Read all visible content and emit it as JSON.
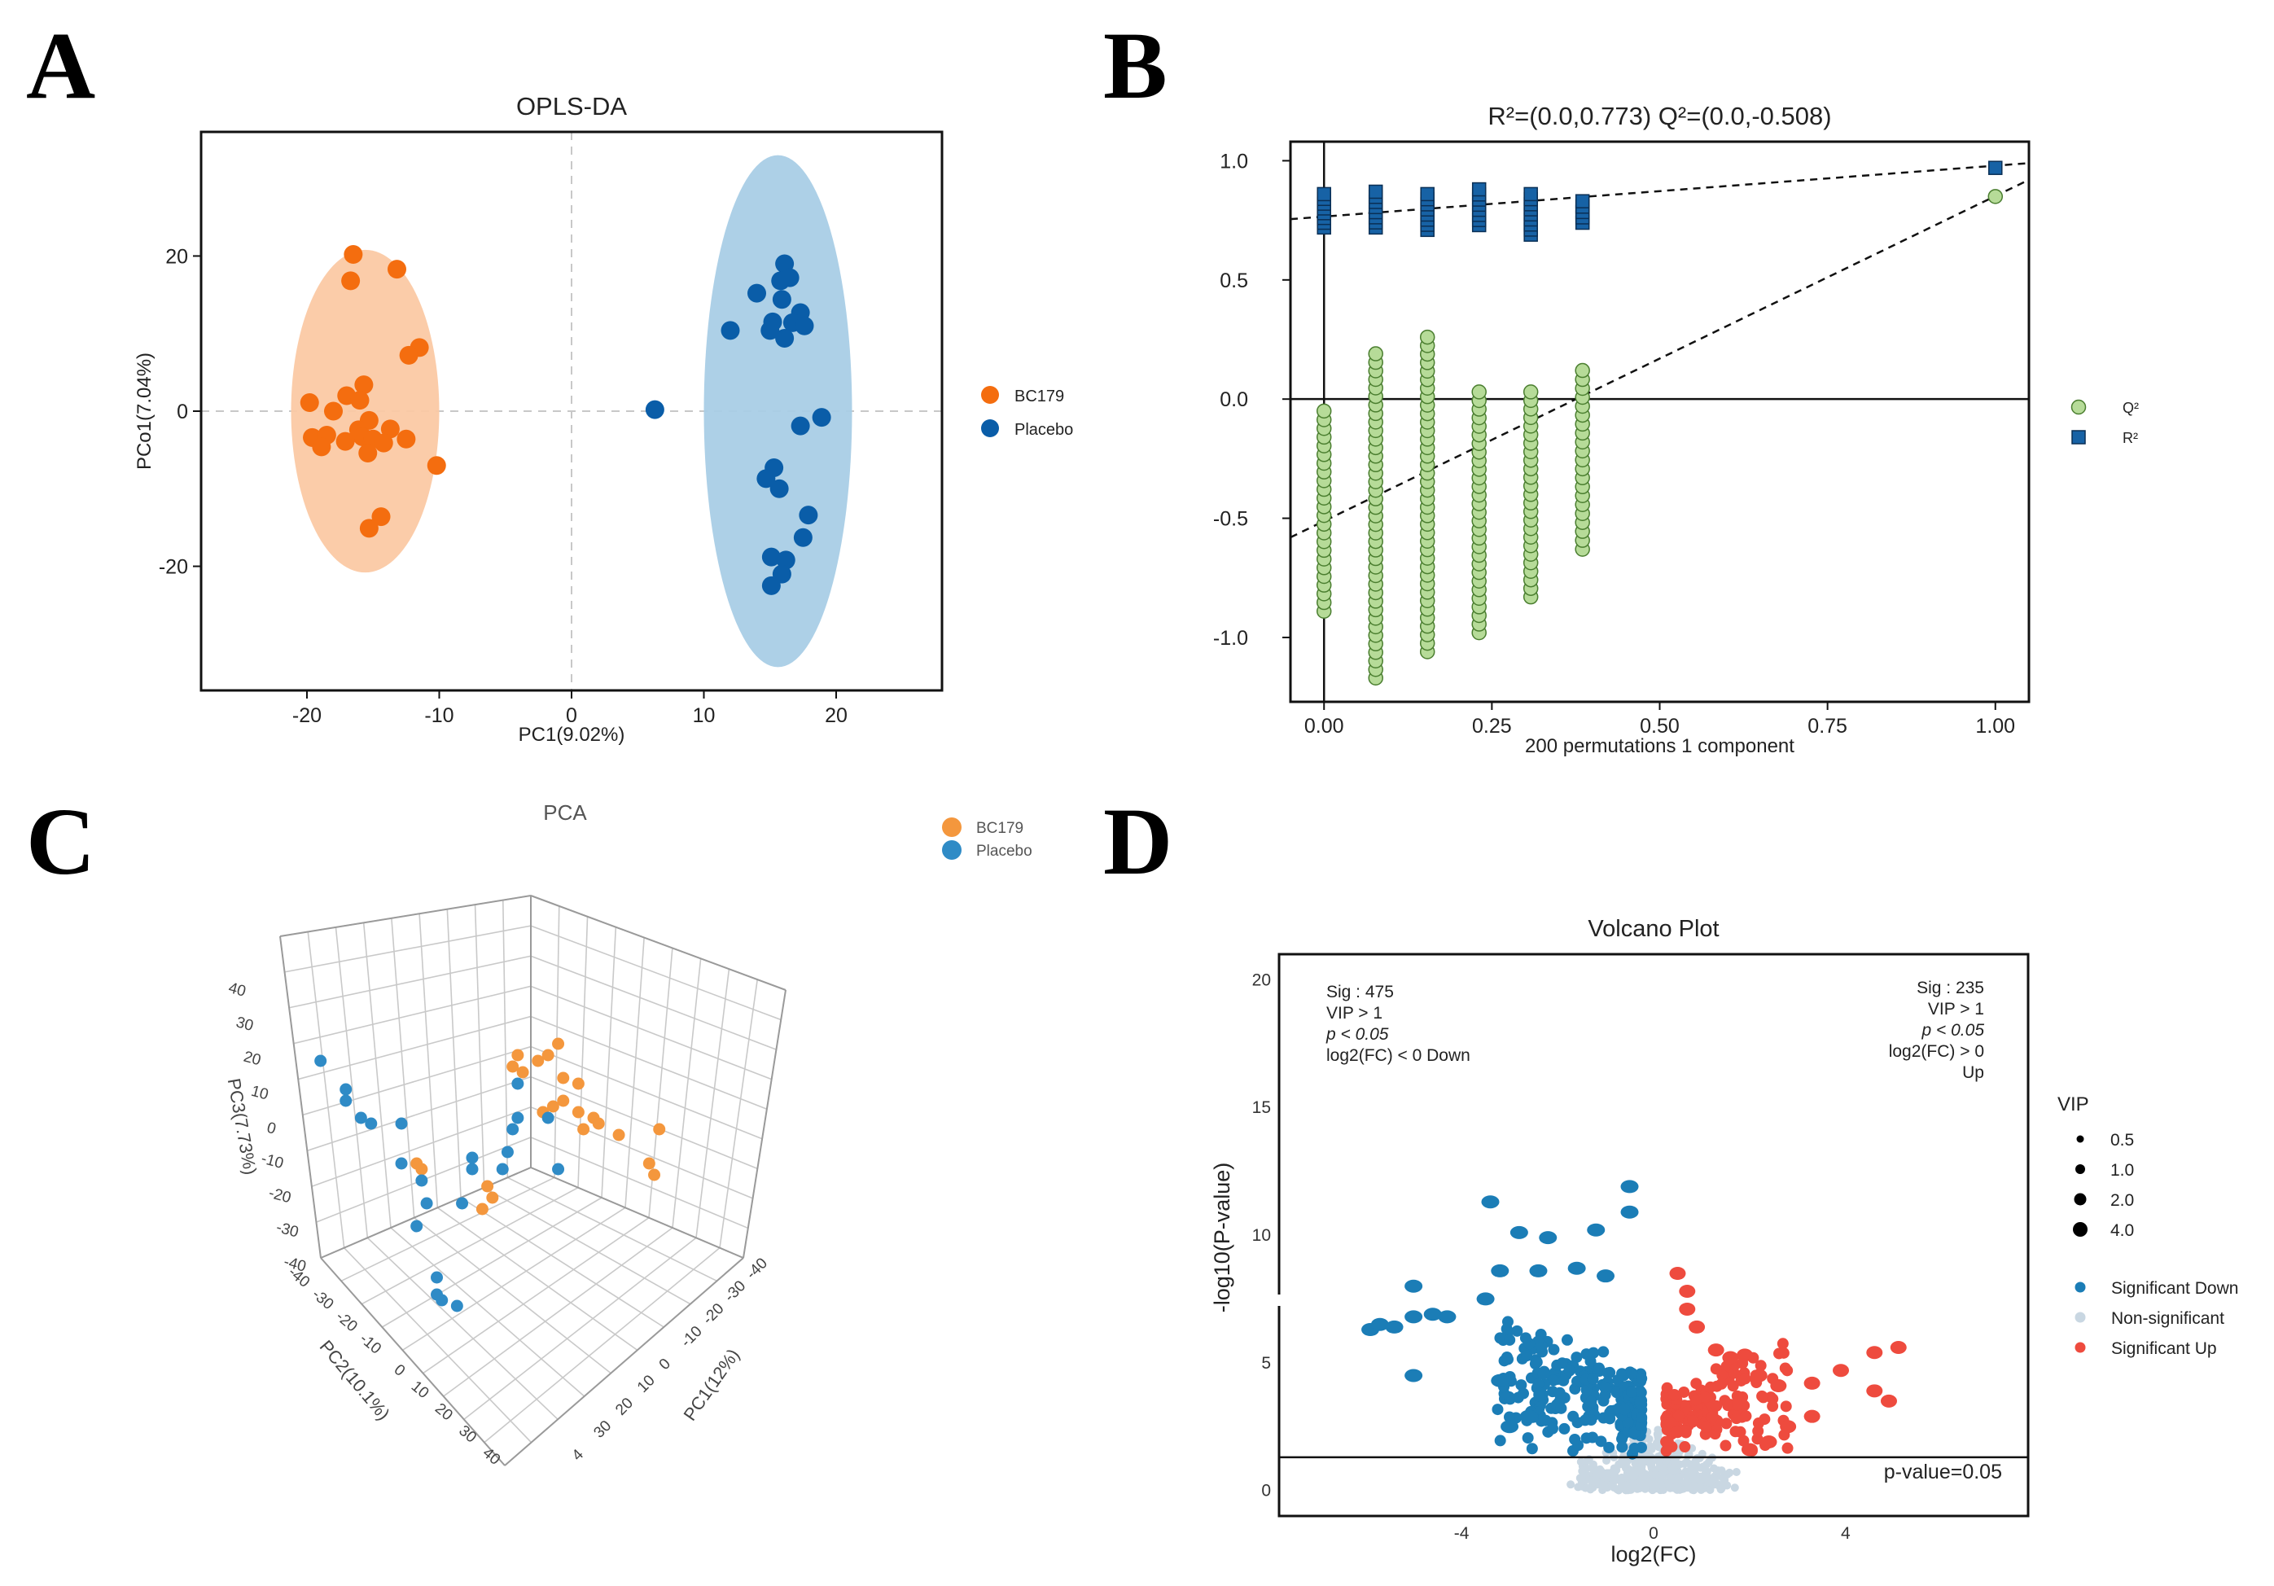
{
  "panels": {
    "A": "A",
    "B": "B",
    "C": "C",
    "D": "D"
  },
  "colors": {
    "bc179_a": "#F46D0F",
    "placebo_a": "#0A5DA8",
    "bc179_fill": "#FBC9A4",
    "placebo_fill": "#A9CDE6",
    "q2": "#B6DB98",
    "q2_edge": "#4A7E2F",
    "r2": "#1762A5",
    "r2_edge": "#0A2F55",
    "bc179_c": "#F4973D",
    "placebo_c": "#2F8BC6",
    "sig_down": "#1B7DB6",
    "nonsig": "#C9D7E2",
    "sig_up": "#EE4B3E"
  },
  "chart_data": [
    {
      "id": "A",
      "type": "scatter",
      "title": "OPLS-DA",
      "xlabel": "PC1(9.02%)",
      "ylabel": "PCo1(7.04%)",
      "xlim": [
        -28,
        28
      ],
      "ylim": [
        -36,
        36
      ],
      "xticks": [
        -20,
        -10,
        0,
        10,
        20
      ],
      "yticks": [
        -20,
        0,
        20
      ],
      "legend": [
        "BC179",
        "Placebo"
      ],
      "ellipses": [
        {
          "name": "BC179",
          "cx": -15.6,
          "cy": 0,
          "rx": 5.6,
          "ry": 20.8
        },
        {
          "name": "Placebo",
          "cx": 15.6,
          "cy": 0,
          "rx": 5.6,
          "ry": 33.0
        }
      ],
      "series": [
        {
          "name": "BC179",
          "points": [
            [
              -16.5,
              20.2
            ],
            [
              -13.2,
              18.3
            ],
            [
              -16.7,
              16.8
            ],
            [
              -11.5,
              8.2
            ],
            [
              -12.3,
              7.2
            ],
            [
              -15.7,
              3.4
            ],
            [
              -17.0,
              2.0
            ],
            [
              -16.0,
              1.4
            ],
            [
              -19.8,
              1.1
            ],
            [
              -18.0,
              0.0
            ],
            [
              -15.3,
              -1.2
            ],
            [
              -16.1,
              -2.4
            ],
            [
              -13.7,
              -2.3
            ],
            [
              -15.8,
              -3.3
            ],
            [
              -19.6,
              -3.4
            ],
            [
              -18.5,
              -3.1
            ],
            [
              -15.0,
              -3.6
            ],
            [
              -12.5,
              -3.6
            ],
            [
              -17.1,
              -3.9
            ],
            [
              -14.2,
              -4.1
            ],
            [
              -18.9,
              -4.6
            ],
            [
              -15.4,
              -5.4
            ],
            [
              -10.2,
              -7.0
            ],
            [
              -14.4,
              -13.6
            ],
            [
              -15.3,
              -15.1
            ]
          ]
        },
        {
          "name": "Placebo",
          "points": [
            [
              16.1,
              19.0
            ],
            [
              16.5,
              17.2
            ],
            [
              15.8,
              16.8
            ],
            [
              14.0,
              15.2
            ],
            [
              15.9,
              14.4
            ],
            [
              17.3,
              12.7
            ],
            [
              15.2,
              11.5
            ],
            [
              16.7,
              11.4
            ],
            [
              17.6,
              11.0
            ],
            [
              12.0,
              10.4
            ],
            [
              15.0,
              10.4
            ],
            [
              16.1,
              9.4
            ],
            [
              6.3,
              0.2
            ],
            [
              18.9,
              -0.8
            ],
            [
              17.3,
              -1.9
            ],
            [
              15.3,
              -7.3
            ],
            [
              14.7,
              -8.7
            ],
            [
              15.7,
              -10.0
            ],
            [
              17.9,
              -13.4
            ],
            [
              17.5,
              -16.3
            ],
            [
              15.1,
              -18.8
            ],
            [
              16.2,
              -19.2
            ],
            [
              15.9,
              -21.0
            ],
            [
              15.1,
              -22.5
            ]
          ]
        }
      ]
    },
    {
      "id": "B",
      "type": "scatter",
      "title": "R²=(0.0,0.773)   Q²=(0.0,-0.508)",
      "xlabel": "200 permutations 1 component",
      "ylabel": "",
      "xlim": [
        -0.05,
        1.05
      ],
      "ylim": [
        -1.27,
        1.08
      ],
      "xticks": [
        "0.00",
        "0.25",
        "0.50",
        "0.75",
        "1.00"
      ],
      "yticks": [
        "1.0",
        "0.5",
        "0.0",
        "-0.5",
        "-1.0"
      ],
      "legend": [
        "Q²",
        "R²"
      ],
      "r2_line": [
        [
          -0.05,
          0.755
        ],
        [
          1.05,
          0.99
        ]
      ],
      "q2_line": [
        [
          -0.05,
          -0.58
        ],
        [
          1.05,
          0.92
        ]
      ],
      "series": [
        {
          "name": "Q²",
          "x": [
            0.0,
            0.077,
            0.154,
            0.231,
            0.308,
            0.385,
            1.0
          ],
          "bands": [
            [
              -0.89,
              -0.05
            ],
            [
              -1.17,
              0.19
            ],
            [
              -1.06,
              0.26
            ],
            [
              -0.98,
              0.03
            ],
            [
              -0.83,
              0.03
            ],
            [
              -0.63,
              0.12
            ],
            [
              0.85,
              0.85
            ]
          ]
        },
        {
          "name": "R²",
          "x": [
            0.0,
            0.077,
            0.154,
            0.231,
            0.308,
            0.385,
            1.0
          ],
          "bands": [
            [
              0.72,
              0.86
            ],
            [
              0.72,
              0.87
            ],
            [
              0.71,
              0.86
            ],
            [
              0.73,
              0.88
            ],
            [
              0.69,
              0.86
            ],
            [
              0.74,
              0.83
            ],
            [
              0.97,
              0.97
            ]
          ]
        }
      ]
    },
    {
      "id": "C",
      "type": "scatter",
      "title": "PCA",
      "xlabel": "PC1(12%)",
      "ylabel": "PC2(10.1%)",
      "zlabel": "PC3(7.73%)",
      "legend": [
        "BC179",
        "Placebo"
      ],
      "axis_x_ticks": [
        "-40",
        "-30",
        "-20",
        "-10",
        "0",
        "10",
        "20",
        "30",
        "4"
      ],
      "axis_y_ticks": [
        "-40",
        "-30",
        "-20",
        "-10",
        "0",
        "10",
        "20",
        "30",
        "40"
      ],
      "axis_z_ticks": [
        "40",
        "30",
        "20",
        "10",
        "0",
        "-10",
        "-20",
        "-30",
        "-40"
      ],
      "series": [
        {
          "name": "BC179",
          "points": [
            [
              0.4,
              0.55
            ],
            [
              0.42,
              0.53
            ],
            [
              0.41,
              0.51
            ],
            [
              0.46,
              0.3
            ],
            [
              0.53,
              0.28
            ],
            [
              0.55,
              0.26
            ],
            [
              0.51,
              0.29
            ],
            [
              0.47,
              0.28
            ],
            [
              0.48,
              0.31
            ],
            [
              0.56,
              0.32
            ],
            [
              0.59,
              0.33
            ],
            [
              0.56,
              0.36
            ],
            [
              0.59,
              0.38
            ],
            [
              0.54,
              0.37
            ],
            [
              0.62,
              0.39
            ],
            [
              0.63,
              0.4
            ],
            [
              0.6,
              0.41
            ],
            [
              0.67,
              0.42
            ],
            [
              0.52,
              0.38
            ],
            [
              0.75,
              0.41
            ],
            [
              0.73,
              0.47
            ],
            [
              0.74,
              0.49
            ],
            [
              0.27,
              0.47
            ],
            [
              0.28,
              0.48
            ]
          ]
        },
        {
          "name": "Placebo",
          "points": [
            [
              0.08,
              0.29
            ],
            [
              0.38,
              0.46
            ],
            [
              0.38,
              0.48
            ],
            [
              0.36,
              0.54
            ],
            [
              0.13,
              0.34
            ],
            [
              0.13,
              0.36
            ],
            [
              0.16,
              0.39
            ],
            [
              0.18,
              0.4
            ],
            [
              0.24,
              0.4
            ],
            [
              0.24,
              0.47
            ],
            [
              0.28,
              0.5
            ],
            [
              0.29,
              0.54
            ],
            [
              0.27,
              0.58
            ],
            [
              0.31,
              0.67
            ],
            [
              0.31,
              0.7
            ],
            [
              0.32,
              0.71
            ],
            [
              0.35,
              0.72
            ],
            [
              0.47,
              0.33
            ],
            [
              0.47,
              0.39
            ],
            [
              0.46,
              0.41
            ],
            [
              0.53,
              0.39
            ],
            [
              0.45,
              0.45
            ],
            [
              0.44,
              0.48
            ],
            [
              0.55,
              0.48
            ]
          ]
        }
      ]
    },
    {
      "id": "D",
      "type": "scatter",
      "title": "Volcano Plot",
      "xlabel": "log2(FC)",
      "ylabel": "-log10(P-value)",
      "xlim": [
        -7.8,
        7.8
      ],
      "ylim": [
        -1,
        21
      ],
      "xticks": [
        -4,
        0,
        4
      ],
      "yticks": [
        0,
        5,
        10,
        15,
        20
      ],
      "hline": 1.3,
      "hline_label": "p-value=0.05",
      "left_annotation": [
        "Sig : 475",
        "VIP > 1",
        "p < 0.05",
        "log2(FC) < 0 Down"
      ],
      "right_annotation": [
        "Sig : 235",
        "VIP > 1",
        "p < 0.05",
        "log2(FC) > 0",
        "Up"
      ],
      "vip_legend_title": "VIP",
      "vip_sizes": [
        "0.5",
        "1.0",
        "2.0",
        "4.0"
      ],
      "legend": [
        "Significant Down",
        "Non-significant",
        "Significant Up"
      ],
      "counts": {
        "sig_down": 475,
        "sig_up": 235
      },
      "highlight_points": {
        "down": [
          [
            -5.9,
            6.3
          ],
          [
            -5.7,
            6.5
          ],
          [
            -5.4,
            6.4
          ],
          [
            -5.0,
            6.8
          ],
          [
            -4.6,
            6.9
          ],
          [
            -4.3,
            6.8
          ],
          [
            -5.0,
            8.0
          ],
          [
            -3.5,
            7.5
          ],
          [
            -3.2,
            8.6
          ],
          [
            -2.4,
            8.6
          ],
          [
            -1.6,
            8.7
          ],
          [
            -1.0,
            8.4
          ],
          [
            -3.4,
            11.3
          ],
          [
            -2.8,
            10.1
          ],
          [
            -2.2,
            9.9
          ],
          [
            -1.2,
            10.2
          ],
          [
            -0.5,
            10.9
          ],
          [
            -0.5,
            11.9
          ],
          [
            -5.0,
            4.5
          ],
          [
            -3.2,
            4.3
          ],
          [
            -3.0,
            2.5
          ],
          [
            -2.6,
            2.9
          ]
        ],
        "up": [
          [
            0.5,
            8.5
          ],
          [
            0.7,
            7.8
          ],
          [
            0.7,
            7.1
          ],
          [
            0.9,
            6.4
          ],
          [
            1.3,
            5.5
          ],
          [
            1.6,
            5.2
          ],
          [
            1.9,
            5.3
          ],
          [
            2.2,
            4.5
          ],
          [
            2.6,
            4.1
          ],
          [
            3.3,
            4.2
          ],
          [
            3.9,
            4.7
          ],
          [
            4.6,
            5.4
          ],
          [
            5.1,
            5.6
          ],
          [
            4.6,
            3.9
          ],
          [
            4.9,
            3.5
          ],
          [
            3.3,
            2.9
          ],
          [
            2.8,
            2.5
          ],
          [
            2.4,
            1.9
          ],
          [
            2.0,
            1.6
          ]
        ]
      }
    }
  ]
}
